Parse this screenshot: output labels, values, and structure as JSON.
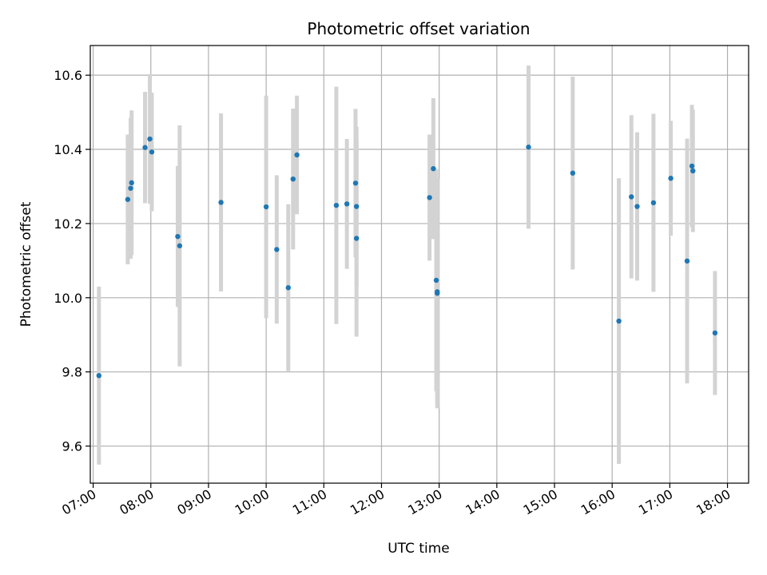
{
  "chart_data": {
    "type": "scatter",
    "title": "Photometric offset variation",
    "xlabel": "UTC time",
    "ylabel": "Photometric offset",
    "x_ticks": [
      "07:00",
      "08:00",
      "09:00",
      "10:00",
      "11:00",
      "12:00",
      "13:00",
      "14:00",
      "15:00",
      "16:00",
      "17:00",
      "18:00"
    ],
    "y_ticks": [
      "9.6",
      "9.8",
      "10.0",
      "10.2",
      "10.4",
      "10.6"
    ],
    "xlim": [
      "06:57",
      "18:22"
    ],
    "ylim": [
      9.5,
      10.68
    ],
    "grid": true,
    "colors": {
      "point": "#1f77b4",
      "errorbar": "#d3d3d3",
      "grid": "#b0b0b0"
    },
    "points": [
      {
        "t": "07:06",
        "y": 9.79,
        "err": 0.24
      },
      {
        "t": "07:36",
        "y": 10.265,
        "err": 0.175
      },
      {
        "t": "07:39",
        "y": 10.295,
        "err": 0.19
      },
      {
        "t": "07:40",
        "y": 10.31,
        "err": 0.195
      },
      {
        "t": "07:54",
        "y": 10.405,
        "err": 0.15
      },
      {
        "t": "07:59",
        "y": 10.428,
        "err": 0.175
      },
      {
        "t": "08:01",
        "y": 10.393,
        "err": 0.16
      },
      {
        "t": "08:28",
        "y": 10.165,
        "err": 0.19
      },
      {
        "t": "08:30",
        "y": 10.14,
        "err": 0.325
      },
      {
        "t": "09:13",
        "y": 10.257,
        "err": 0.24
      },
      {
        "t": "10:00",
        "y": 10.245,
        "err": 0.3
      },
      {
        "t": "10:11",
        "y": 10.13,
        "err": 0.2
      },
      {
        "t": "10:23",
        "y": 10.027,
        "err": 0.225
      },
      {
        "t": "10:28",
        "y": 10.32,
        "err": 0.19
      },
      {
        "t": "10:32",
        "y": 10.385,
        "err": 0.16
      },
      {
        "t": "11:13",
        "y": 10.249,
        "err": 0.32
      },
      {
        "t": "11:24",
        "y": 10.253,
        "err": 0.175
      },
      {
        "t": "11:33",
        "y": 10.309,
        "err": 0.2
      },
      {
        "t": "11:34",
        "y": 10.246,
        "err": 0.215
      },
      {
        "t": "11:34",
        "y": 10.16,
        "err": 0.265
      },
      {
        "t": "12:50",
        "y": 10.27,
        "err": 0.17
      },
      {
        "t": "12:54",
        "y": 10.348,
        "err": 0.19
      },
      {
        "t": "12:57",
        "y": 10.047,
        "err": 0.3
      },
      {
        "t": "12:58",
        "y": 10.016,
        "err": 0.3
      },
      {
        "t": "12:58",
        "y": 10.012,
        "err": 0.31
      },
      {
        "t": "14:33",
        "y": 10.406,
        "err": 0.22
      },
      {
        "t": "15:19",
        "y": 10.336,
        "err": 0.26
      },
      {
        "t": "16:07",
        "y": 9.937,
        "err": 0.385
      },
      {
        "t": "16:20",
        "y": 10.272,
        "err": 0.22
      },
      {
        "t": "16:26",
        "y": 10.246,
        "err": 0.2
      },
      {
        "t": "16:43",
        "y": 10.256,
        "err": 0.24
      },
      {
        "t": "17:01",
        "y": 10.322,
        "err": 0.155
      },
      {
        "t": "17:18",
        "y": 10.099,
        "err": 0.33
      },
      {
        "t": "17:23",
        "y": 10.355,
        "err": 0.165
      },
      {
        "t": "17:24",
        "y": 10.342,
        "err": 0.165
      },
      {
        "t": "17:47",
        "y": 9.905,
        "err": 0.167
      }
    ]
  }
}
